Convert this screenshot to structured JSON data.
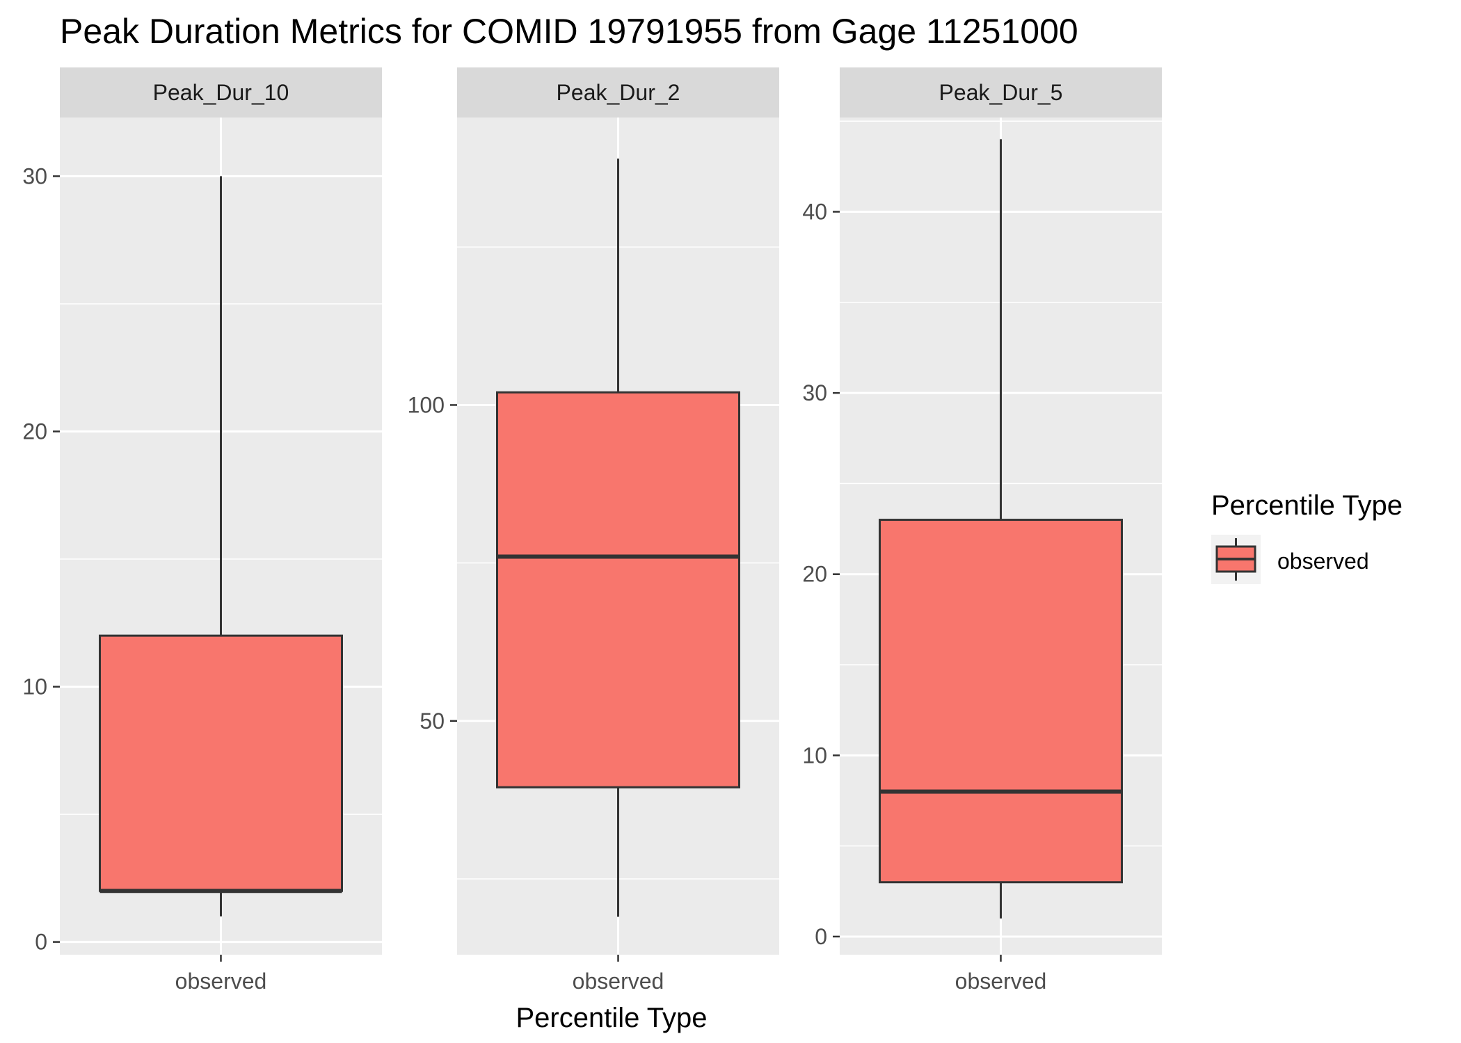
{
  "chart_data": {
    "type": "box",
    "title": "Peak Duration Metrics for COMID 19791955 from Gage 11251000",
    "xlabel": "Percentile Type",
    "ylabel": "",
    "legend": {
      "title": "Percentile Type",
      "placement": "right",
      "entries": [
        {
          "label": "observed",
          "color": "#F8766D"
        }
      ]
    },
    "grid": true,
    "panel_background": "#EBEBEB",
    "strip_background": "#D9D9D9",
    "box_fill": "#F8766D",
    "box_stroke": "#333333",
    "facets": [
      {
        "name": "Peak_Dur_10",
        "category": "observed",
        "ylim": [
          -0.5,
          32.3
        ],
        "yticks": [
          0,
          10,
          20,
          30
        ],
        "minor_ticks": [
          5,
          15,
          25
        ],
        "min": 1,
        "q1": 2,
        "median": 2,
        "q3": 12,
        "max": 30
      },
      {
        "name": "Peak_Dur_2",
        "category": "observed",
        "ylim": [
          13,
          145.5
        ],
        "yticks": [
          50,
          100
        ],
        "minor_ticks": [
          25,
          75,
          125
        ],
        "min": 19,
        "q1": 39.5,
        "median": 76,
        "q3": 102,
        "max": 139
      },
      {
        "name": "Peak_Dur_5",
        "category": "observed",
        "ylim": [
          -1,
          45.2
        ],
        "yticks": [
          0,
          10,
          20,
          30,
          40
        ],
        "minor_ticks": [
          5,
          15,
          25,
          35,
          45
        ],
        "min": 1,
        "q1": 3,
        "median": 8,
        "q3": 23,
        "max": 44
      }
    ]
  }
}
